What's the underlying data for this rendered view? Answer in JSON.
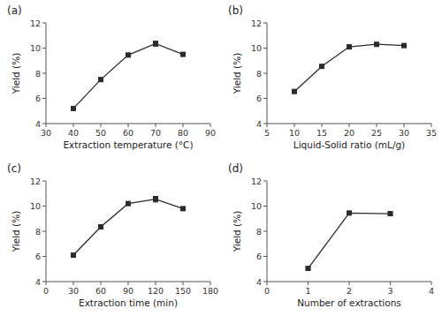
{
  "chart_data": [
    {
      "type": "line",
      "title": "(a)",
      "xlabel": "Extraction temperature (°C)",
      "ylabel": "Yield (%)",
      "x": [
        40,
        50,
        60,
        70,
        80
      ],
      "values": [
        5.2,
        7.5,
        9.45,
        10.35,
        9.5
      ],
      "yerr": [
        0.14,
        0.12,
        0.13,
        0.2,
        0.12
      ],
      "color": "#2b2b2b",
      "marker": "square",
      "line_style": "solid",
      "xlim": [
        30,
        90
      ],
      "xticks": [
        30,
        40,
        50,
        60,
        70,
        80,
        90
      ],
      "ylim": [
        4,
        12
      ],
      "yticks": [
        4,
        6,
        8,
        10,
        12
      ]
    },
    {
      "type": "line",
      "title": "(b)",
      "xlabel": "Liquid-Solid ratio (mL/g)",
      "ylabel": "Yield (%)",
      "x": [
        10,
        15,
        20,
        25,
        30
      ],
      "values": [
        6.55,
        8.55,
        10.1,
        10.3,
        10.2
      ],
      "yerr": [
        0.1,
        0.1,
        0.1,
        0.12,
        0.1
      ],
      "color": "#2b2b2b",
      "marker": "square",
      "line_style": "solid",
      "xlim": [
        5,
        35
      ],
      "xticks": [
        5,
        10,
        15,
        20,
        25,
        30,
        35
      ],
      "ylim": [
        4,
        12
      ],
      "yticks": [
        4,
        6,
        8,
        10,
        12
      ]
    },
    {
      "type": "line",
      "title": "(c)",
      "xlabel": "Extraction time (min)",
      "ylabel": "Yield (%)",
      "x": [
        30,
        60,
        90,
        120,
        150
      ],
      "values": [
        6.1,
        8.35,
        10.2,
        10.55,
        9.8
      ],
      "yerr": [
        0.1,
        0.12,
        0.12,
        0.22,
        0.12
      ],
      "color": "#2b2b2b",
      "marker": "square",
      "line_style": "solid",
      "xlim": [
        0,
        180
      ],
      "xticks": [
        0,
        30,
        60,
        90,
        120,
        150,
        180
      ],
      "ylim": [
        4,
        12
      ],
      "yticks": [
        4,
        6,
        8,
        10,
        12
      ]
    },
    {
      "type": "line",
      "title": "(d)",
      "xlabel": "Number of extractions",
      "ylabel": "Yield (%)",
      "x": [
        1,
        2,
        3
      ],
      "values": [
        5.05,
        9.45,
        9.4
      ],
      "yerr": [
        0.08,
        0.12,
        0.12
      ],
      "color": "#2b2b2b",
      "marker": "square",
      "line_style": "solid",
      "xlim": [
        0,
        4
      ],
      "xticks": [
        0,
        1,
        2,
        3,
        4
      ],
      "ylim": [
        4,
        12
      ],
      "yticks": [
        4,
        6,
        8,
        10,
        12
      ]
    }
  ]
}
